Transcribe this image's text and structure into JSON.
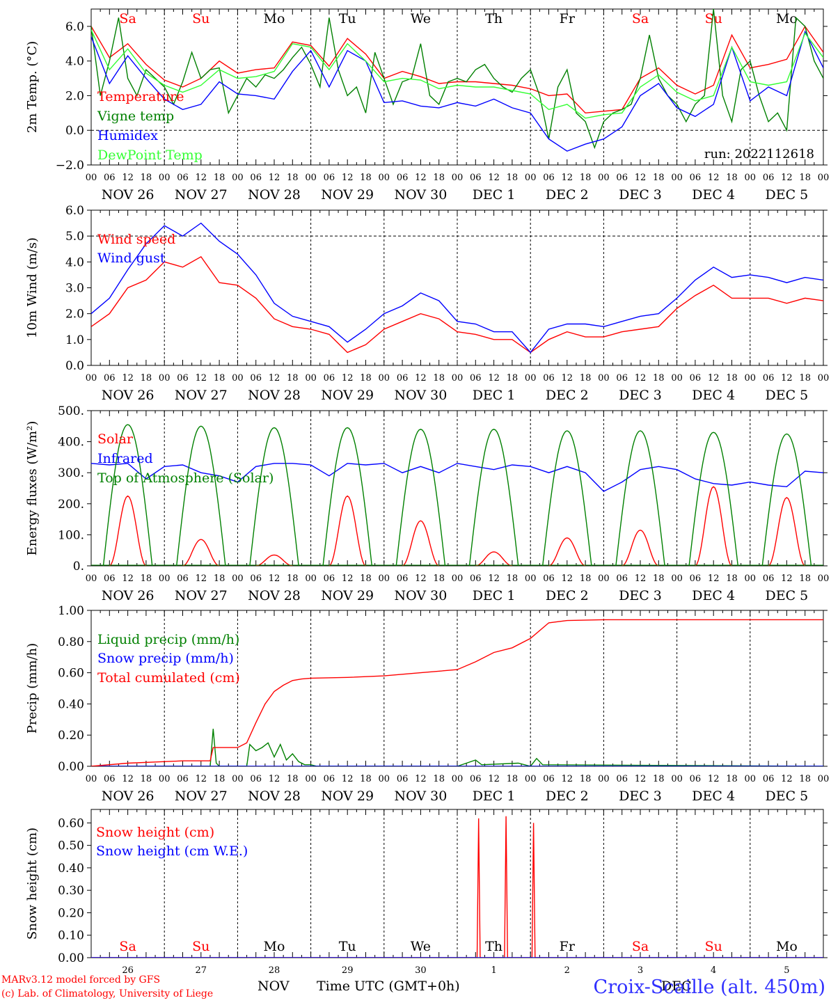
{
  "footer": {
    "model": "MARv3.12 model forced by GFS",
    "lab": "(c) Lab. of Climatology, University of Liege",
    "month": "NOV",
    "month2": "DEC",
    "time_label": "Time UTC (GMT+0h)",
    "station": "Croix-Scaille (alt. 450m)"
  },
  "run_label": "run: 2022112618",
  "colors": {
    "red": "#ff0000",
    "green": "#008000",
    "blue": "#0000ff",
    "lightgreen": "#33ff33",
    "weekend": "#ff0000"
  },
  "chart_data": [
    {
      "id": "temp",
      "type": "line",
      "ylabel": "2m Temp. (°C)",
      "ylim": [
        -2,
        7
      ],
      "yticks": [
        "−2.0",
        "0.0",
        "2.0",
        "4.0",
        "6.0"
      ],
      "ytick_values": [
        -2,
        0,
        2,
        4,
        6
      ],
      "dashed_y": [
        0
      ],
      "x_start": 0,
      "x_end": 240,
      "days": [
        "Sa",
        "Su",
        "Mo",
        "Tu",
        "We",
        "Th",
        "Fr",
        "Sa",
        "Su",
        "Mo"
      ],
      "day_labels": [
        "NOV 26",
        "NOV 27",
        "NOV 28",
        "NOV 29",
        "NOV 30",
        "DEC  1",
        "DEC  2",
        "DEC  3",
        "DEC  4",
        "DEC  5"
      ],
      "hour_ticks": [
        "00",
        "06",
        "12",
        "18"
      ],
      "series": [
        {
          "name": "Temperature",
          "color": "#ff0000",
          "x": [
            0,
            6,
            12,
            18,
            24,
            30,
            36,
            42,
            48,
            54,
            60,
            66,
            72,
            78,
            84,
            90,
            96,
            102,
            108,
            114,
            120,
            126,
            132,
            138,
            144,
            150,
            156,
            162,
            168,
            174,
            180,
            186,
            192,
            198,
            204,
            210,
            216,
            222,
            228,
            234,
            240
          ],
          "values": [
            6.0,
            4.2,
            5.0,
            3.8,
            2.9,
            2.5,
            3.0,
            4.0,
            3.3,
            3.5,
            3.6,
            5.1,
            4.9,
            3.7,
            5.3,
            4.4,
            3.0,
            3.4,
            3.1,
            2.7,
            2.8,
            2.8,
            2.7,
            2.6,
            2.4,
            2.0,
            2.1,
            1.0,
            1.1,
            1.2,
            3.0,
            3.6,
            2.6,
            2.1,
            2.6,
            5.5,
            3.6,
            3.8,
            4.1,
            6.0,
            4.5
          ]
        },
        {
          "name": "Vigne temp",
          "color": "#008000",
          "x": [
            0,
            3,
            6,
            9,
            12,
            15,
            18,
            21,
            24,
            27,
            30,
            33,
            36,
            39,
            42,
            45,
            48,
            51,
            54,
            57,
            60,
            63,
            66,
            69,
            72,
            75,
            78,
            81,
            84,
            87,
            90,
            93,
            96,
            99,
            102,
            105,
            108,
            111,
            114,
            117,
            120,
            123,
            126,
            129,
            132,
            135,
            138,
            141,
            144,
            147,
            150,
            153,
            156,
            159,
            162,
            165,
            168,
            171,
            174,
            177,
            180,
            183,
            186,
            189,
            192,
            195,
            198,
            201,
            204,
            207,
            210,
            213,
            216,
            219,
            222,
            225,
            228,
            231,
            234,
            237,
            240
          ],
          "values": [
            6.0,
            2.0,
            4.0,
            6.5,
            3.0,
            2.0,
            3.5,
            3.0,
            2.5,
            1.5,
            2.8,
            4.5,
            3.0,
            3.5,
            3.6,
            1.0,
            2.0,
            3.0,
            2.5,
            3.2,
            3.0,
            3.5,
            4.2,
            4.8,
            3.8,
            2.5,
            6.5,
            3.5,
            2.0,
            2.5,
            1.0,
            4.5,
            3.0,
            1.5,
            2.8,
            3.0,
            5.0,
            2.0,
            1.5,
            2.8,
            3.0,
            2.8,
            3.5,
            3.8,
            3.0,
            2.5,
            2.2,
            3.0,
            3.5,
            2.0,
            -0.5,
            2.5,
            3.5,
            1.0,
            0.5,
            -1.0,
            0.5,
            1.0,
            1.2,
            1.5,
            3.0,
            5.5,
            3.0,
            2.0,
            1.5,
            0.5,
            1.5,
            2.0,
            7.0,
            2.0,
            0.5,
            3.5,
            4.0,
            2.0,
            0.5,
            1.0,
            0.0,
            6.5,
            6.0,
            4.0,
            3.0
          ]
        },
        {
          "name": "Humidex",
          "color": "#0000ff",
          "x": [
            0,
            6,
            12,
            18,
            24,
            30,
            36,
            42,
            48,
            54,
            60,
            66,
            72,
            78,
            84,
            90,
            96,
            102,
            108,
            114,
            120,
            126,
            132,
            138,
            144,
            150,
            156,
            162,
            168,
            174,
            180,
            186,
            192,
            198,
            204,
            210,
            216,
            222,
            228,
            234,
            240
          ],
          "values": [
            5.4,
            2.7,
            4.3,
            3.0,
            1.8,
            1.2,
            1.5,
            2.8,
            2.1,
            2.0,
            1.8,
            3.4,
            4.6,
            2.5,
            4.6,
            4.0,
            1.6,
            1.7,
            1.4,
            1.3,
            1.6,
            1.4,
            1.8,
            1.3,
            1.0,
            -0.5,
            -1.2,
            -0.8,
            -0.5,
            0.2,
            2.0,
            2.7,
            1.3,
            0.8,
            1.5,
            4.8,
            1.7,
            2.5,
            2.0,
            5.7,
            3.6
          ]
        },
        {
          "name": "DewPoint Temp",
          "color": "#33ff33",
          "x": [
            0,
            6,
            12,
            18,
            24,
            30,
            36,
            42,
            48,
            54,
            60,
            66,
            72,
            78,
            84,
            90,
            96,
            102,
            108,
            114,
            120,
            126,
            132,
            138,
            144,
            150,
            156,
            162,
            168,
            174,
            180,
            186,
            192,
            198,
            204,
            210,
            216,
            222,
            228,
            234,
            240
          ],
          "values": [
            5.8,
            3.5,
            4.7,
            3.3,
            2.6,
            2.2,
            2.6,
            3.5,
            3.0,
            3.1,
            3.4,
            5.0,
            4.8,
            3.5,
            5.0,
            4.0,
            2.8,
            3.0,
            2.9,
            2.4,
            2.6,
            2.5,
            2.5,
            2.3,
            2.1,
            1.2,
            1.5,
            0.7,
            0.9,
            1.0,
            2.5,
            3.2,
            2.2,
            1.7,
            2.0,
            4.8,
            2.8,
            2.6,
            2.8,
            5.6,
            4.2
          ]
        }
      ]
    },
    {
      "id": "wind",
      "type": "line",
      "ylabel": "10m Wind (m/s)",
      "ylim": [
        0,
        6
      ],
      "yticks": [
        "0.0",
        "1.0",
        "2.0",
        "3.0",
        "4.0",
        "5.0",
        "6.0"
      ],
      "ytick_values": [
        0,
        1,
        2,
        3,
        4,
        5,
        6
      ],
      "dashed_y": [
        5
      ],
      "x_start": 0,
      "x_end": 240,
      "series": [
        {
          "name": "Wind speed",
          "color": "#ff0000",
          "x": [
            0,
            6,
            12,
            18,
            24,
            30,
            36,
            42,
            48,
            54,
            60,
            66,
            72,
            78,
            84,
            90,
            96,
            102,
            108,
            114,
            120,
            126,
            132,
            138,
            144,
            150,
            156,
            162,
            168,
            174,
            180,
            186,
            192,
            198,
            204,
            210,
            216,
            222,
            228,
            234,
            240
          ],
          "values": [
            1.5,
            2.0,
            3.0,
            3.3,
            4.0,
            3.8,
            4.2,
            3.2,
            3.1,
            2.6,
            1.8,
            1.5,
            1.4,
            1.2,
            0.5,
            0.8,
            1.4,
            1.7,
            2.0,
            1.8,
            1.3,
            1.2,
            1.0,
            1.0,
            0.5,
            1.0,
            1.3,
            1.1,
            1.1,
            1.3,
            1.4,
            1.5,
            2.2,
            2.7,
            3.1,
            2.6,
            2.6,
            2.6,
            2.4,
            2.6,
            2.5
          ]
        },
        {
          "name": "Wind gust",
          "color": "#0000ff",
          "x": [
            0,
            6,
            12,
            18,
            24,
            30,
            36,
            42,
            48,
            54,
            60,
            66,
            72,
            78,
            84,
            90,
            96,
            102,
            108,
            114,
            120,
            126,
            132,
            138,
            144,
            150,
            156,
            162,
            168,
            174,
            180,
            186,
            192,
            198,
            204,
            210,
            216,
            222,
            228,
            234,
            240
          ],
          "values": [
            2.0,
            2.6,
            3.7,
            4.7,
            5.4,
            5.0,
            5.5,
            4.8,
            4.3,
            3.5,
            2.4,
            1.9,
            1.7,
            1.5,
            0.9,
            1.4,
            2.0,
            2.3,
            2.8,
            2.5,
            1.7,
            1.6,
            1.3,
            1.3,
            0.5,
            1.4,
            1.6,
            1.6,
            1.5,
            1.7,
            1.9,
            2.0,
            2.6,
            3.3,
            3.8,
            3.4,
            3.5,
            3.4,
            3.2,
            3.4,
            3.3
          ]
        }
      ]
    },
    {
      "id": "flux",
      "type": "line",
      "ylabel": "Energy fluxes (W/m²)",
      "ylim": [
        0,
        500
      ],
      "yticks": [
        "0.",
        "100.",
        "200.",
        "300.",
        "400.",
        "500."
      ],
      "ytick_values": [
        0,
        100,
        200,
        300,
        400,
        500
      ],
      "dashed_y": [],
      "x_start": 0,
      "x_end": 240,
      "solar_peaks": [
        225,
        85,
        35,
        225,
        145,
        45,
        90,
        115,
        255,
        220
      ],
      "toa_peaks": [
        455,
        450,
        445,
        445,
        440,
        440,
        435,
        435,
        430,
        425
      ],
      "series": [
        {
          "name": "Solar",
          "color": "#ff0000"
        },
        {
          "name": "Infrared",
          "color": "#0000ff",
          "x": [
            0,
            6,
            12,
            18,
            24,
            30,
            36,
            42,
            48,
            54,
            60,
            66,
            72,
            78,
            84,
            90,
            96,
            102,
            108,
            114,
            120,
            126,
            132,
            138,
            144,
            150,
            156,
            162,
            168,
            174,
            180,
            186,
            192,
            198,
            204,
            210,
            216,
            222,
            228,
            234,
            240
          ],
          "values": [
            330,
            325,
            330,
            280,
            320,
            325,
            300,
            290,
            270,
            320,
            330,
            330,
            325,
            290,
            330,
            325,
            330,
            300,
            320,
            300,
            330,
            320,
            310,
            325,
            320,
            300,
            320,
            300,
            240,
            270,
            310,
            320,
            310,
            280,
            265,
            260,
            270,
            260,
            255,
            305,
            300
          ]
        },
        {
          "name": "Top of Atmosphere (Solar)",
          "color": "#008000"
        }
      ]
    },
    {
      "id": "precip",
      "type": "line",
      "ylabel": "Precip (mm/h)",
      "ylim": [
        0,
        1
      ],
      "yticks": [
        "0.00",
        "0.20",
        "0.40",
        "0.60",
        "0.80",
        "1.00"
      ],
      "ytick_values": [
        0,
        0.2,
        0.4,
        0.6,
        0.8,
        1.0
      ],
      "dashed_y": [],
      "x_start": 0,
      "x_end": 240,
      "series": [
        {
          "name": "Liquid precip (mm/h)",
          "color": "#008000",
          "x": [
            0,
            30,
            39,
            40,
            41,
            42,
            46,
            51,
            52,
            54,
            56,
            58,
            60,
            62,
            64,
            66,
            68,
            70,
            72,
            74,
            120,
            126,
            128,
            140,
            144,
            146,
            148,
            240
          ],
          "values": [
            0.0,
            0.0,
            0.0,
            0.24,
            0.02,
            0.0,
            0.0,
            0.0,
            0.14,
            0.1,
            0.12,
            0.15,
            0.06,
            0.14,
            0.04,
            0.08,
            0.03,
            0.01,
            0.01,
            0.0,
            0.0,
            0.04,
            0.01,
            0.02,
            0.0,
            0.05,
            0.01,
            0.0
          ]
        },
        {
          "name": "Snow precip (mm/h)",
          "color": "#0000ff",
          "x": [
            0,
            240
          ],
          "values": [
            0,
            0
          ]
        },
        {
          "name": "Total cumulated (cm)",
          "color": "#ff0000",
          "x": [
            0,
            12,
            24,
            30,
            39,
            40,
            48,
            51,
            54,
            57,
            60,
            63,
            66,
            69,
            72,
            84,
            96,
            108,
            120,
            126,
            132,
            138,
            144,
            150,
            156,
            168,
            180,
            192,
            204,
            216,
            228,
            240
          ],
          "values": [
            0.0,
            0.02,
            0.03,
            0.035,
            0.035,
            0.12,
            0.12,
            0.15,
            0.28,
            0.4,
            0.48,
            0.52,
            0.55,
            0.56,
            0.565,
            0.57,
            0.58,
            0.6,
            0.62,
            0.67,
            0.73,
            0.76,
            0.82,
            0.92,
            0.935,
            0.94,
            0.94,
            0.94,
            0.94,
            0.94,
            0.94,
            0.94
          ]
        }
      ]
    },
    {
      "id": "snow",
      "type": "line",
      "ylabel": "Snow height (cm)",
      "ylim": [
        0,
        0.66
      ],
      "yticks": [
        "0.00",
        "0.10",
        "0.20",
        "0.30",
        "0.40",
        "0.50",
        "0.60"
      ],
      "ytick_values": [
        0,
        0.1,
        0.2,
        0.3,
        0.4,
        0.5,
        0.6
      ],
      "dashed_y": [],
      "x_start": 0,
      "x_end": 240,
      "bottom_days": [
        "Sa",
        "Su",
        "Mo",
        "Tu",
        "We",
        "Th",
        "Fr",
        "Sa",
        "Su",
        "Mo"
      ],
      "bottom_dates": [
        "26",
        "27",
        "28",
        "29",
        "30",
        "1",
        "2",
        "3",
        "4",
        "5"
      ],
      "series": [
        {
          "name": "Snow height (cm)",
          "color": "#ff0000",
          "x": [
            0,
            126.5,
            127,
            127.5,
            135.5,
            136,
            136.5,
            144.5,
            145,
            145.5,
            240
          ],
          "values": [
            0,
            0,
            0.62,
            0,
            0,
            0.63,
            0,
            0,
            0.6,
            0,
            0
          ]
        },
        {
          "name": "Snow height (cm W.E.)",
          "color": "#0000ff",
          "x": [
            0,
            240
          ],
          "values": [
            0,
            0
          ]
        }
      ]
    }
  ]
}
